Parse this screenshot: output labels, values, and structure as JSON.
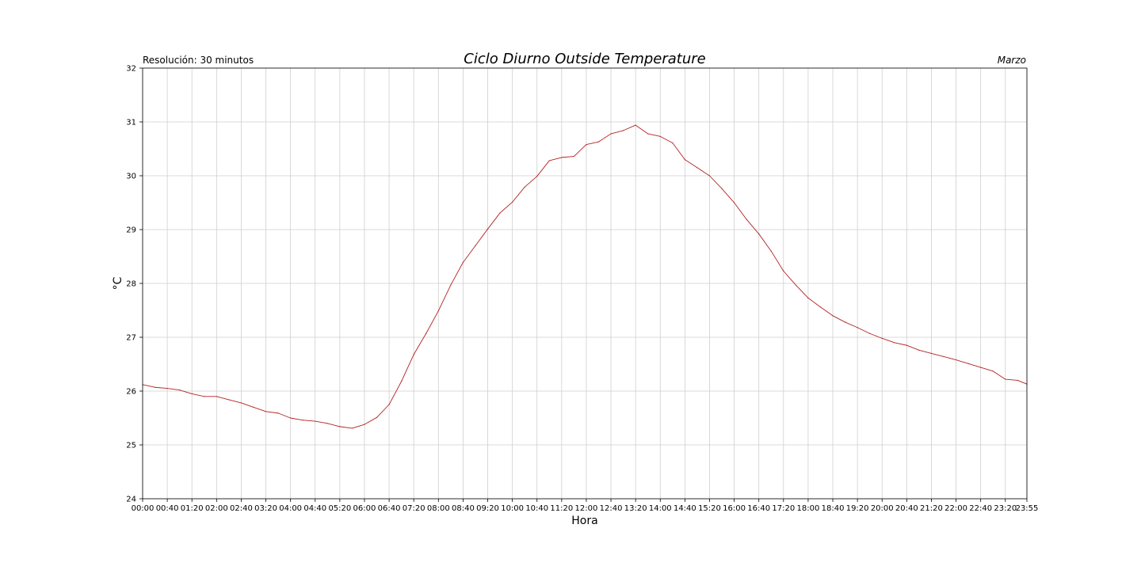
{
  "header": {
    "resolution": "Resolución: 30 minutos",
    "title": "Ciclo Diurno Outside Temperature",
    "period": "Marzo"
  },
  "colors": {
    "series": "#b22222",
    "grid": "#cfcfcf",
    "axis": "#000000"
  },
  "chart_data": {
    "type": "line",
    "title": "Ciclo Diurno Outside Temperature",
    "subtitle": "Resolución: 30 minutos",
    "period_label": "Marzo",
    "xlabel": "Hora",
    "ylabel": "°C",
    "ylim": [
      24,
      32
    ],
    "yticks": [
      24,
      25,
      26,
      27,
      28,
      29,
      30,
      31,
      32
    ],
    "xtick_labels": [
      "00:00",
      "00:40",
      "01:20",
      "02:00",
      "02:40",
      "03:20",
      "04:00",
      "04:40",
      "05:20",
      "06:00",
      "06:40",
      "07:20",
      "08:00",
      "08:40",
      "09:20",
      "10:00",
      "10:40",
      "11:20",
      "12:00",
      "12:40",
      "13:20",
      "14:00",
      "14:40",
      "15:20",
      "16:00",
      "16:40",
      "17:20",
      "18:00",
      "18:40",
      "19:20",
      "20:00",
      "20:40",
      "21:20",
      "22:00",
      "22:40",
      "23:20",
      "23:55"
    ],
    "grid": true,
    "legend": "none",
    "x": [
      "00:00",
      "00:20",
      "00:40",
      "01:00",
      "01:20",
      "01:40",
      "02:00",
      "02:20",
      "02:40",
      "03:00",
      "03:20",
      "03:40",
      "04:00",
      "04:20",
      "04:40",
      "05:00",
      "05:20",
      "05:40",
      "06:00",
      "06:20",
      "06:40",
      "07:00",
      "07:20",
      "07:40",
      "08:00",
      "08:20",
      "08:40",
      "09:00",
      "09:20",
      "09:40",
      "10:00",
      "10:20",
      "10:40",
      "11:00",
      "11:20",
      "11:40",
      "12:00",
      "12:20",
      "12:40",
      "13:00",
      "13:20",
      "13:40",
      "14:00",
      "14:20",
      "14:40",
      "15:00",
      "15:20",
      "15:40",
      "16:00",
      "16:20",
      "16:40",
      "17:00",
      "17:20",
      "17:40",
      "18:00",
      "18:20",
      "18:40",
      "19:00",
      "19:20",
      "19:40",
      "20:00",
      "20:20",
      "20:40",
      "21:00",
      "21:20",
      "21:40",
      "22:00",
      "22:20",
      "22:40",
      "23:00",
      "23:20",
      "23:40",
      "23:55"
    ],
    "series": [
      {
        "values": [
          26.12,
          26.07,
          26.05,
          26.02,
          25.95,
          25.9,
          25.9,
          25.84,
          25.78,
          25.7,
          25.62,
          25.59,
          25.5,
          25.46,
          25.44,
          25.4,
          25.34,
          25.31,
          25.38,
          25.51,
          25.75,
          26.18,
          26.68,
          27.07,
          27.49,
          27.97,
          28.39,
          28.7,
          29.01,
          29.31,
          29.51,
          29.79,
          29.99,
          30.28,
          30.34,
          30.36,
          30.58,
          30.63,
          30.78,
          30.84,
          30.94,
          30.78,
          30.73,
          30.61,
          30.3,
          30.15,
          30.0,
          29.76,
          29.5,
          29.19,
          28.92,
          28.6,
          28.23,
          27.97,
          27.73,
          27.56,
          27.4,
          27.28,
          27.18,
          27.07,
          26.98,
          26.9,
          26.85,
          26.76,
          26.7,
          26.64,
          26.58,
          26.51,
          26.44,
          26.37,
          26.22,
          26.2,
          26.13
        ]
      }
    ]
  }
}
